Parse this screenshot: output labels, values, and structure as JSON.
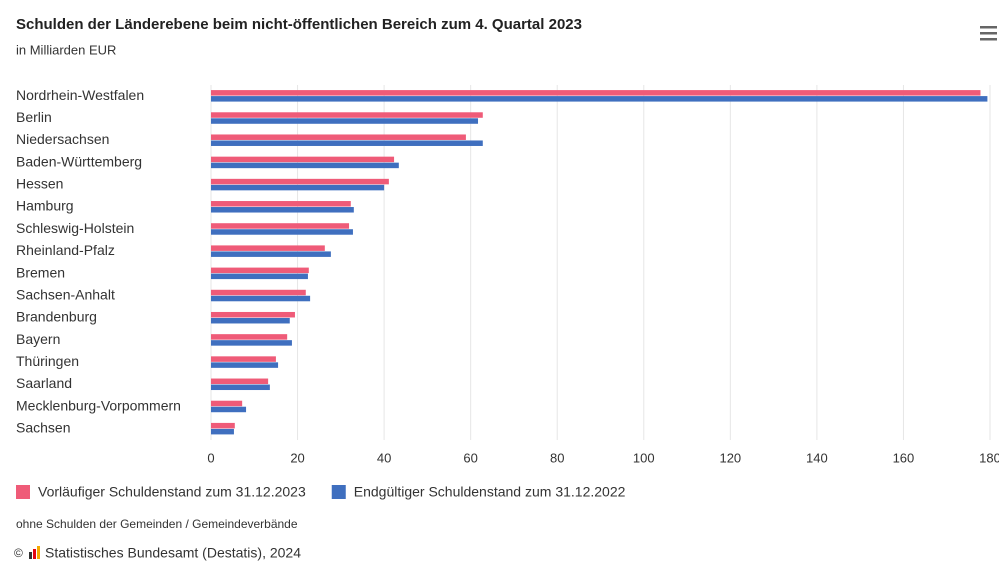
{
  "chart_data": {
    "type": "hbar",
    "title": "Schulden der Länderebene beim nicht-öffentlichen Bereich zum 4. Quartal 2023",
    "subtitle": "in Milliarden EUR",
    "categories": [
      "Nordrhein-Westfalen",
      "Berlin",
      "Niedersachsen",
      "Baden-Württemberg",
      "Hessen",
      "Hamburg",
      "Schleswig-Holstein",
      "Rheinland-Pfalz",
      "Bremen",
      "Sachsen-Anhalt",
      "Brandenburg",
      "Bayern",
      "Thüringen",
      "Saarland",
      "Mecklenburg-Vorpommern",
      "Sachsen"
    ],
    "series": [
      {
        "name": "Vorläufiger Schuldenstand zum 31.12.2023",
        "color": "#ef5b78",
        "values": [
          177.8,
          62.8,
          58.9,
          42.3,
          41.1,
          32.3,
          31.9,
          26.3,
          22.6,
          21.9,
          19.4,
          17.6,
          15.0,
          13.2,
          7.2,
          5.5
        ]
      },
      {
        "name": "Endgültiger Schuldenstand zum 31.12.2022",
        "color": "#3f6fbf",
        "values": [
          179.4,
          61.7,
          62.8,
          43.4,
          40.0,
          33.0,
          32.8,
          27.7,
          22.4,
          22.9,
          18.2,
          18.7,
          15.5,
          13.6,
          8.1,
          5.3
        ]
      }
    ],
    "xlim": [
      0,
      180
    ],
    "xticks": [
      0,
      20,
      40,
      60,
      80,
      100,
      120,
      140,
      160,
      180
    ],
    "grid": true,
    "footnote": "ohne Schulden der Gemeinden / Gemeindeverbände",
    "copyright": "©",
    "source": "Statistisches Bundesamt (Destatis), 2024"
  }
}
